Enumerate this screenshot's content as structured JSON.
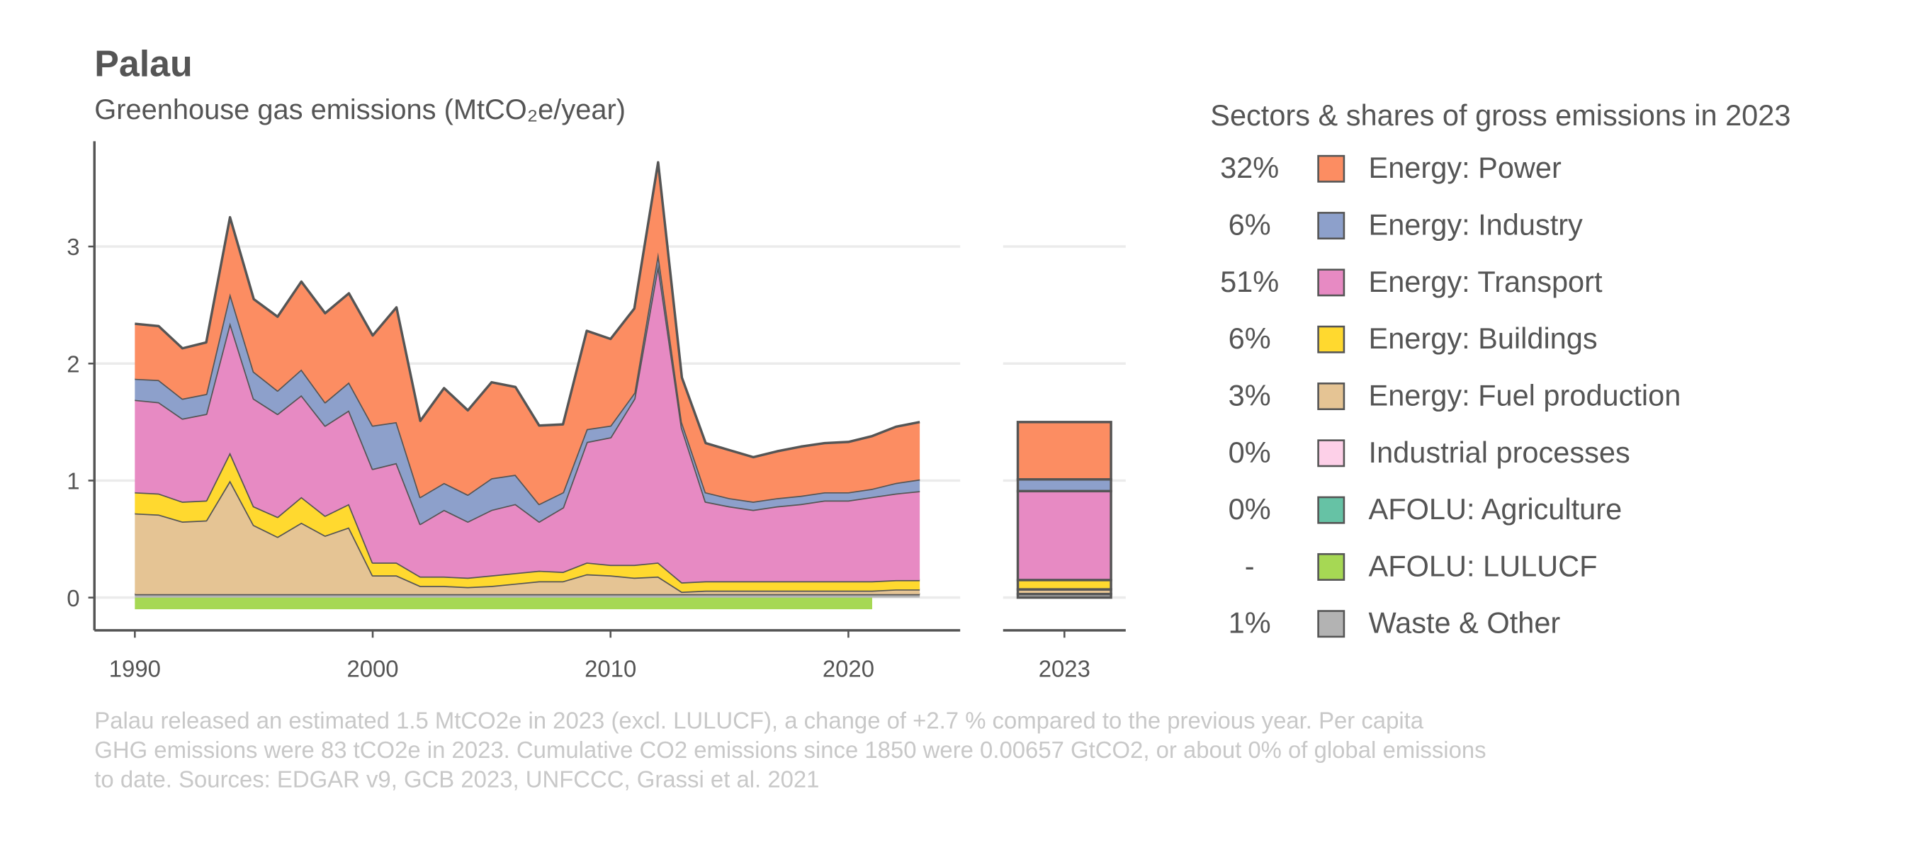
{
  "chart_data": {
    "type": "stacked_area",
    "title": "Palau",
    "subtitle": "Greenhouse gas emissions (MtCO₂e/year)",
    "legend_title": "Sectors & shares of gross emissions in 2023",
    "notes": [
      "Palau released an estimated 1.5 MtCO2e in 2023 (excl. LULUCF), a change of +2.7 % compared to the previous year. Per capita",
      "GHG emissions were 83 tCO2e in 2023. Cumulative CO2 emissions since 1850 were 0.00657 GtCO2, or about 0% of global emissions",
      "to date. Sources: EDGAR v9, GCB 2023, UNFCCC, Grassi et al. 2021"
    ],
    "x": [
      1990,
      1991,
      1992,
      1993,
      1994,
      1995,
      1996,
      1997,
      1998,
      1999,
      2000,
      2001,
      2002,
      2003,
      2004,
      2005,
      2006,
      2007,
      2008,
      2009,
      2010,
      2011,
      2012,
      2013,
      2014,
      2015,
      2016,
      2017,
      2018,
      2019,
      2020,
      2021,
      2022,
      2023
    ],
    "xlim": [
      1988.3,
      2024.7
    ],
    "xticks": [
      1990,
      2000,
      2010,
      2020
    ],
    "ylim": [
      -0.28,
      3.9
    ],
    "yticks": [
      0,
      1,
      2,
      3
    ],
    "grid": true,
    "series": [
      {
        "name": "Energy: Power",
        "share": "32%",
        "color": "#fc8d62",
        "values": [
          0.47,
          0.46,
          0.43,
          0.44,
          0.65,
          0.62,
          0.63,
          0.75,
          0.76,
          0.76,
          0.77,
          0.98,
          0.65,
          0.81,
          0.72,
          0.82,
          0.75,
          0.67,
          0.58,
          0.84,
          0.74,
          0.72,
          0.77,
          0.38,
          0.42,
          0.41,
          0.38,
          0.4,
          0.42,
          0.42,
          0.43,
          0.45,
          0.48,
          0.49
        ]
      },
      {
        "name": "Energy: Industry",
        "share": "6%",
        "color": "#8da0cb",
        "values": [
          0.18,
          0.19,
          0.17,
          0.17,
          0.25,
          0.23,
          0.2,
          0.22,
          0.2,
          0.24,
          0.37,
          0.35,
          0.23,
          0.23,
          0.23,
          0.27,
          0.25,
          0.15,
          0.13,
          0.11,
          0.1,
          0.05,
          0.1,
          0.05,
          0.08,
          0.07,
          0.07,
          0.07,
          0.07,
          0.07,
          0.07,
          0.07,
          0.09,
          0.1
        ]
      },
      {
        "name": "Energy: Transport",
        "share": "51%",
        "color": "#e78ac3",
        "values": [
          0.79,
          0.78,
          0.71,
          0.74,
          1.11,
          0.92,
          0.88,
          0.87,
          0.77,
          0.8,
          0.8,
          0.85,
          0.45,
          0.57,
          0.48,
          0.56,
          0.59,
          0.42,
          0.55,
          1.03,
          1.09,
          1.42,
          2.55,
          1.32,
          0.68,
          0.64,
          0.61,
          0.64,
          0.66,
          0.69,
          0.69,
          0.72,
          0.74,
          0.76
        ]
      },
      {
        "name": "Energy: Buildings",
        "share": "6%",
        "color": "#ffd92f",
        "values": [
          0.18,
          0.18,
          0.17,
          0.17,
          0.24,
          0.16,
          0.17,
          0.22,
          0.17,
          0.2,
          0.11,
          0.11,
          0.08,
          0.08,
          0.08,
          0.09,
          0.09,
          0.09,
          0.08,
          0.1,
          0.09,
          0.11,
          0.12,
          0.08,
          0.08,
          0.08,
          0.08,
          0.08,
          0.08,
          0.08,
          0.08,
          0.08,
          0.08,
          0.08
        ]
      },
      {
        "name": "Energy: Fuel production",
        "share": "3%",
        "color": "#e5c494",
        "values": [
          0.69,
          0.68,
          0.62,
          0.63,
          0.97,
          0.59,
          0.49,
          0.61,
          0.5,
          0.57,
          0.16,
          0.16,
          0.07,
          0.07,
          0.06,
          0.07,
          0.09,
          0.11,
          0.11,
          0.17,
          0.16,
          0.14,
          0.15,
          0.02,
          0.03,
          0.03,
          0.03,
          0.03,
          0.03,
          0.03,
          0.03,
          0.03,
          0.04,
          0.04
        ]
      },
      {
        "name": "Industrial processes",
        "share": "0%",
        "color": "#fdd0e8",
        "values": [
          0,
          0,
          0,
          0,
          0,
          0,
          0,
          0,
          0,
          0,
          0,
          0,
          0,
          0,
          0,
          0,
          0,
          0,
          0,
          0,
          0,
          0,
          0,
          0,
          0,
          0,
          0,
          0,
          0,
          0,
          0,
          0,
          0,
          0
        ]
      },
      {
        "name": "AFOLU: Agriculture",
        "share": "0%",
        "color": "#66c2a5",
        "values": [
          0,
          0,
          0,
          0,
          0,
          0,
          0,
          0,
          0,
          0,
          0,
          0,
          0,
          0,
          0,
          0,
          0,
          0,
          0,
          0,
          0,
          0,
          0,
          0,
          0,
          0,
          0,
          0,
          0,
          0,
          0,
          0,
          0,
          0
        ]
      },
      {
        "name": "AFOLU: LULUCF",
        "share": "-",
        "color": "#a6d854",
        "values": [
          -0.1,
          -0.1,
          -0.1,
          -0.1,
          -0.1,
          -0.1,
          -0.1,
          -0.1,
          -0.1,
          -0.1,
          -0.1,
          -0.1,
          -0.1,
          -0.1,
          -0.1,
          -0.1,
          -0.1,
          -0.1,
          -0.1,
          -0.1,
          -0.1,
          -0.1,
          -0.1,
          -0.1,
          -0.1,
          -0.1,
          -0.1,
          -0.1,
          -0.1,
          -0.1,
          -0.1,
          -0.1,
          null,
          null
        ]
      },
      {
        "name": "Waste & Other",
        "share": "1%",
        "color": "#b3b3b3",
        "values": [
          0.03,
          0.03,
          0.03,
          0.03,
          0.03,
          0.03,
          0.03,
          0.03,
          0.03,
          0.03,
          0.03,
          0.03,
          0.03,
          0.03,
          0.03,
          0.03,
          0.03,
          0.03,
          0.03,
          0.03,
          0.03,
          0.03,
          0.03,
          0.03,
          0.03,
          0.03,
          0.03,
          0.03,
          0.03,
          0.03,
          0.03,
          0.03,
          0.03,
          0.03
        ]
      }
    ]
  }
}
